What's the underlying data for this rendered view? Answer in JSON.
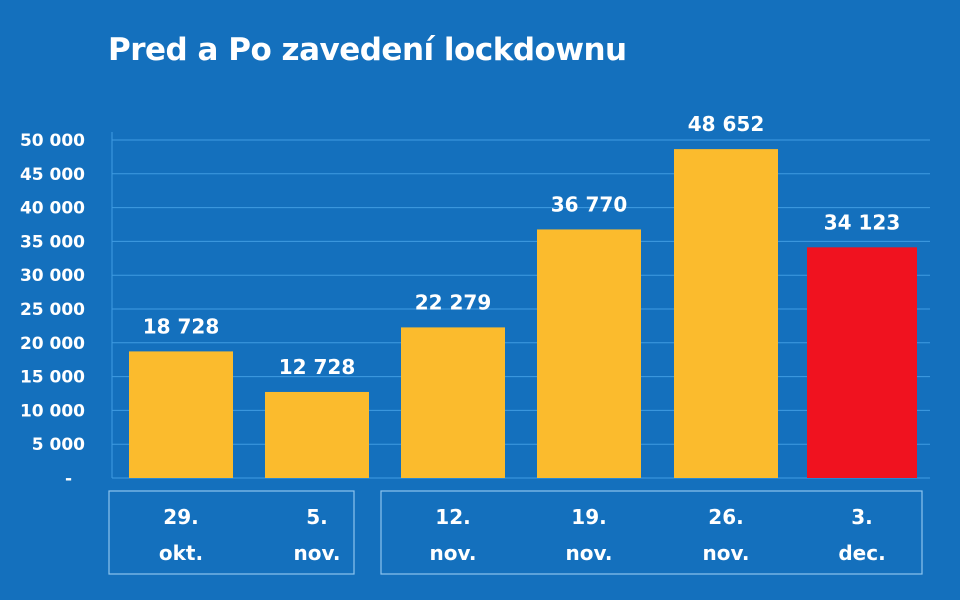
{
  "chart_data": {
    "type": "bar",
    "title": "Pred a Po zavedení lockdownu",
    "categories": [
      [
        "29.",
        "okt."
      ],
      [
        "5.",
        "nov."
      ],
      [
        "12.",
        "nov."
      ],
      [
        "19.",
        "nov."
      ],
      [
        "26.",
        "nov."
      ],
      [
        "3.",
        "dec."
      ]
    ],
    "values": [
      18728,
      12728,
      22279,
      36770,
      48652,
      34123
    ],
    "data_labels": [
      "18 728",
      "12 728",
      "22 279",
      "36 770",
      "48 652",
      "34 123"
    ],
    "bar_colors": [
      "#fbbb2d",
      "#fbbb2d",
      "#fbbb2d",
      "#fbbb2d",
      "#fbbb2d",
      "#f0121f"
    ],
    "ylim": [
      0,
      50000
    ],
    "yticks": [
      0,
      5000,
      10000,
      15000,
      20000,
      25000,
      30000,
      35000,
      40000,
      45000,
      50000
    ],
    "ytick_labels": [
      "-",
      "5 000",
      "10 000",
      "15 000",
      "20 000",
      "25 000",
      "30 000",
      "35 000",
      "40 000",
      "45 000",
      "50 000"
    ],
    "category_groups": [
      [
        0,
        1
      ],
      [
        2,
        3,
        4,
        5
      ]
    ],
    "grid": true,
    "xlabel": "",
    "ylabel": "",
    "background": "#1470bd",
    "grid_color": "#3f9be2"
  }
}
